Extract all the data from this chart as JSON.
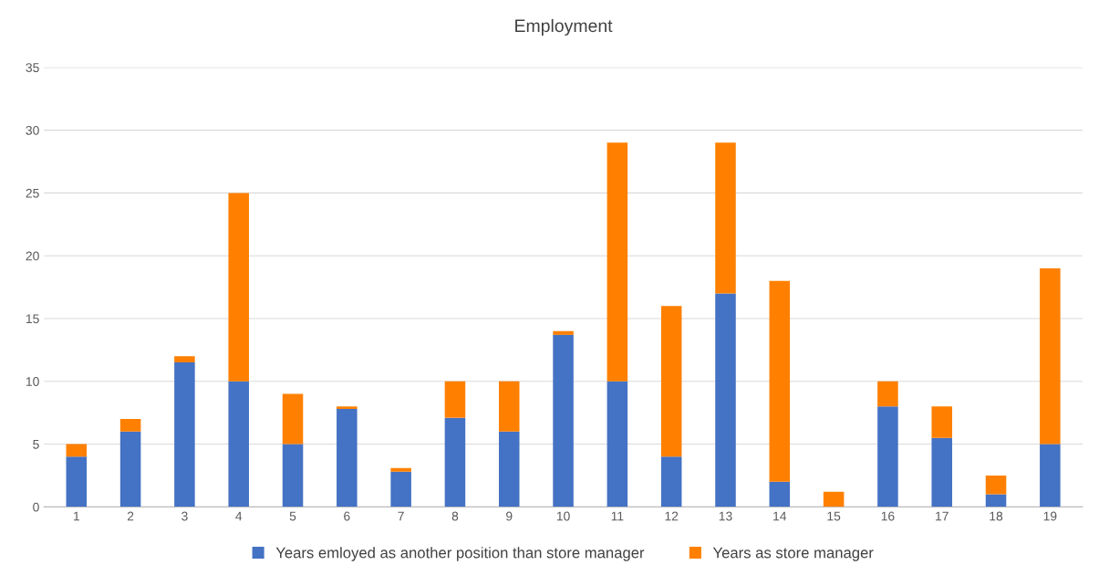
{
  "chart_data": {
    "type": "bar",
    "title": "Employment",
    "stacked": true,
    "categories": [
      "1",
      "2",
      "3",
      "4",
      "5",
      "6",
      "7",
      "8",
      "9",
      "10",
      "11",
      "12",
      "13",
      "14",
      "15",
      "16",
      "17",
      "18",
      "19"
    ],
    "series": [
      {
        "name": "Years emloyed as another position than store manager",
        "color": "#4472c4",
        "values": [
          4,
          6,
          11.5,
          10,
          5,
          7.8,
          2.8,
          7.1,
          6,
          13.7,
          10,
          4,
          17,
          2,
          0,
          8,
          5.5,
          1,
          5
        ]
      },
      {
        "name": "Years as store manager",
        "color": "#ff8000",
        "values": [
          1,
          1,
          0.5,
          15,
          4,
          0.2,
          0.3,
          2.9,
          4,
          0.3,
          19,
          12,
          12,
          16,
          1.2,
          2,
          2.5,
          1.5,
          14
        ]
      }
    ],
    "ylim": [
      0,
      35
    ],
    "yticks": [
      0,
      5,
      10,
      15,
      20,
      25,
      30,
      35
    ],
    "grid": "y",
    "legend": "bottom"
  }
}
